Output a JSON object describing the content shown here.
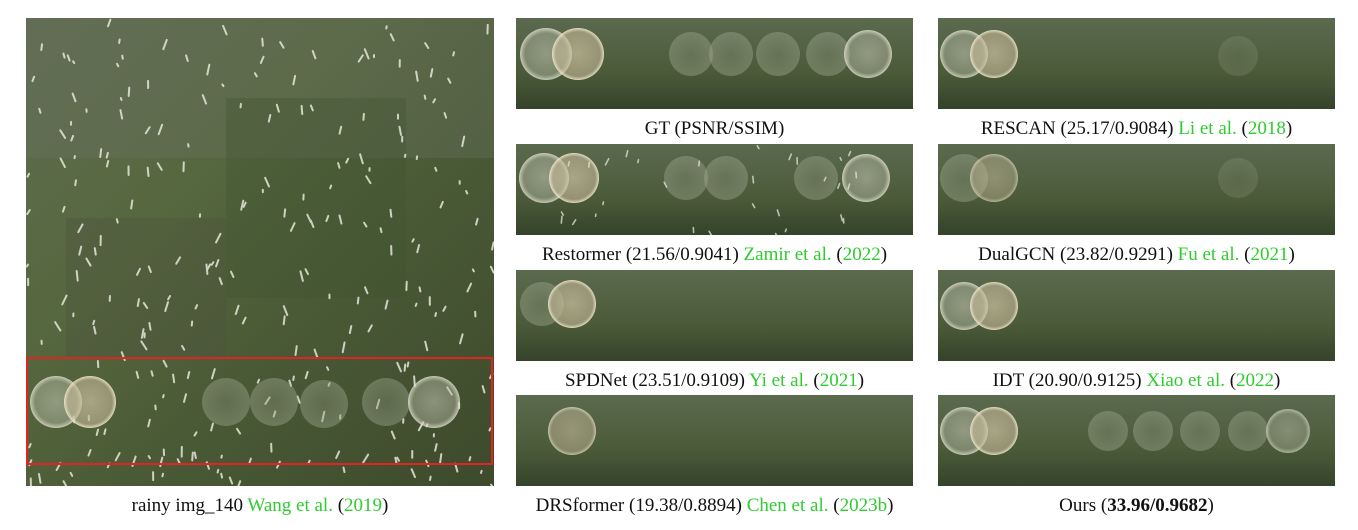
{
  "figure": {
    "accent_color": "#e02424",
    "citation_color": "#2ecc2e",
    "panels": [
      {
        "id": "rainy",
        "label": "rainy img_140",
        "cite_name": "Wang et al.",
        "cite_year": "2019"
      },
      {
        "id": "gt",
        "label": "GT (PSNR/SSIM)"
      },
      {
        "id": "rescan",
        "label": "RESCAN (25.17/0.9084)",
        "cite_name": "Li et al.",
        "cite_year": "2018"
      },
      {
        "id": "restormer",
        "label": "Restormer (21.56/0.9041)",
        "cite_name": "Zamir et al.",
        "cite_year": "2022"
      },
      {
        "id": "dualgcn",
        "label": "DualGCN (23.82/0.9291)",
        "cite_name": "Fu et al.",
        "cite_year": "2021"
      },
      {
        "id": "spdnet",
        "label": "SPDNet (23.51/0.9109)",
        "cite_name": "Yi et al.",
        "cite_year": "2021"
      },
      {
        "id": "idt",
        "label": "IDT (20.90/0.9125)",
        "cite_name": "Xiao et al.",
        "cite_year": "2022"
      },
      {
        "id": "drsformer",
        "label": "DRSformer (19.38/0.8894)",
        "cite_name": "Chen et al.",
        "cite_year": "2023b"
      },
      {
        "id": "ours",
        "label_prefix": "Ours (",
        "label_bold": "33.96/0.9682",
        "label_suffix": ")"
      }
    ]
  }
}
